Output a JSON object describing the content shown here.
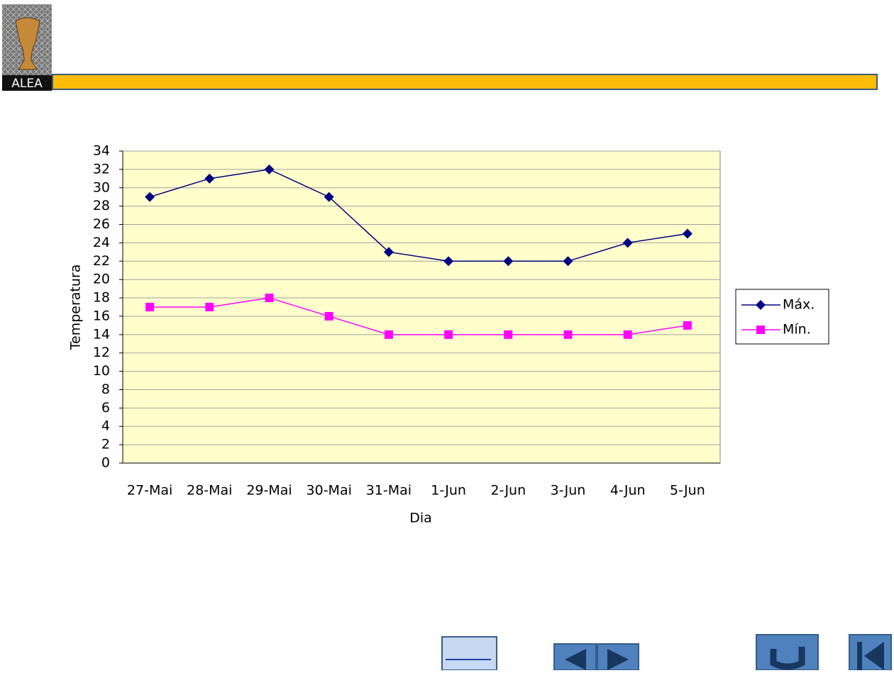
{
  "logo": "ALEA",
  "chart_data": {
    "type": "line",
    "x_label": "Dia",
    "y_label": "Temperatura",
    "categories": [
      "27-Mai",
      "28-Mai",
      "29-Mai",
      "30-Mai",
      "31-Mai",
      "1-Jun",
      "2-Jun",
      "3-Jun",
      "4-Jun",
      "5-Jun"
    ],
    "series": [
      {
        "name": "Máx.",
        "color": "#000080",
        "marker": "diamond",
        "values": [
          29,
          31,
          32,
          29,
          23,
          22,
          22,
          22,
          24,
          25
        ]
      },
      {
        "name": "Mín.",
        "color": "#ff00ff",
        "marker": "square",
        "values": [
          17,
          17,
          18,
          16,
          14,
          14,
          14,
          14,
          14,
          15
        ]
      }
    ],
    "ylim": [
      0,
      34
    ],
    "yticks": [
      0,
      2,
      4,
      6,
      8,
      10,
      12,
      14,
      16,
      18,
      20,
      22,
      24,
      26,
      28,
      30,
      32,
      34
    ],
    "grid": true,
    "legend": "right",
    "plot_background": "#ffffcc"
  }
}
